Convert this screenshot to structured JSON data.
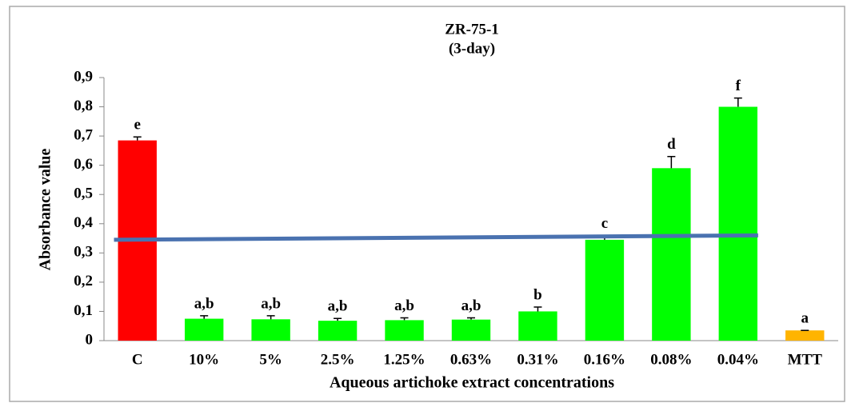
{
  "chart_data": {
    "type": "bar",
    "title": "ZR-75-1",
    "subtitle": "(3-day)",
    "x_label": "Aqueous artichoke extract concentrations",
    "y_label": "Absorbance value",
    "categories": [
      "C",
      "10%",
      "5%",
      "2.5%",
      "1.25%",
      "0.63%",
      "0.31%",
      "0.16%",
      "0.08%",
      "0.04%",
      "MTT"
    ],
    "values": [
      0.685,
      0.075,
      0.073,
      0.068,
      0.07,
      0.072,
      0.1,
      0.345,
      0.59,
      0.8,
      0.035
    ],
    "errors": [
      0.012,
      0.01,
      0.012,
      0.008,
      0.008,
      0.006,
      0.015,
      0.015,
      0.04,
      0.03,
      0
    ],
    "colors": [
      "#ff0000",
      "#00ff00",
      "#00ff00",
      "#00ff00",
      "#00ff00",
      "#00ff00",
      "#00ff00",
      "#00ff00",
      "#00ff00",
      "#00ff00",
      "#ffb400"
    ],
    "annotations": [
      "e",
      "a,b",
      "a,b",
      "a,b",
      "a,b",
      "a,b",
      "b",
      "c",
      "d",
      "f",
      "a"
    ],
    "reference_line": {
      "values": [
        0.345,
        0.36
      ],
      "color": "#4a72b0"
    },
    "ylim": [
      0,
      0.9
    ],
    "yticks": [
      0,
      {
        "value": 0.1,
        "label": "0,1"
      },
      {
        "value": 0.2,
        "label": "0,2"
      },
      {
        "value": 0.3,
        "label": "0,3"
      },
      {
        "value": 0.4,
        "label": "0,4"
      },
      {
        "value": 0.5,
        "label": "0,5"
      },
      {
        "value": 0.6,
        "label": "0,6"
      },
      {
        "value": 0.7,
        "label": "0,7"
      },
      {
        "value": 0.8,
        "label": "0,8"
      },
      {
        "value": 0.9,
        "label": "0,9"
      }
    ],
    "grid": false
  }
}
